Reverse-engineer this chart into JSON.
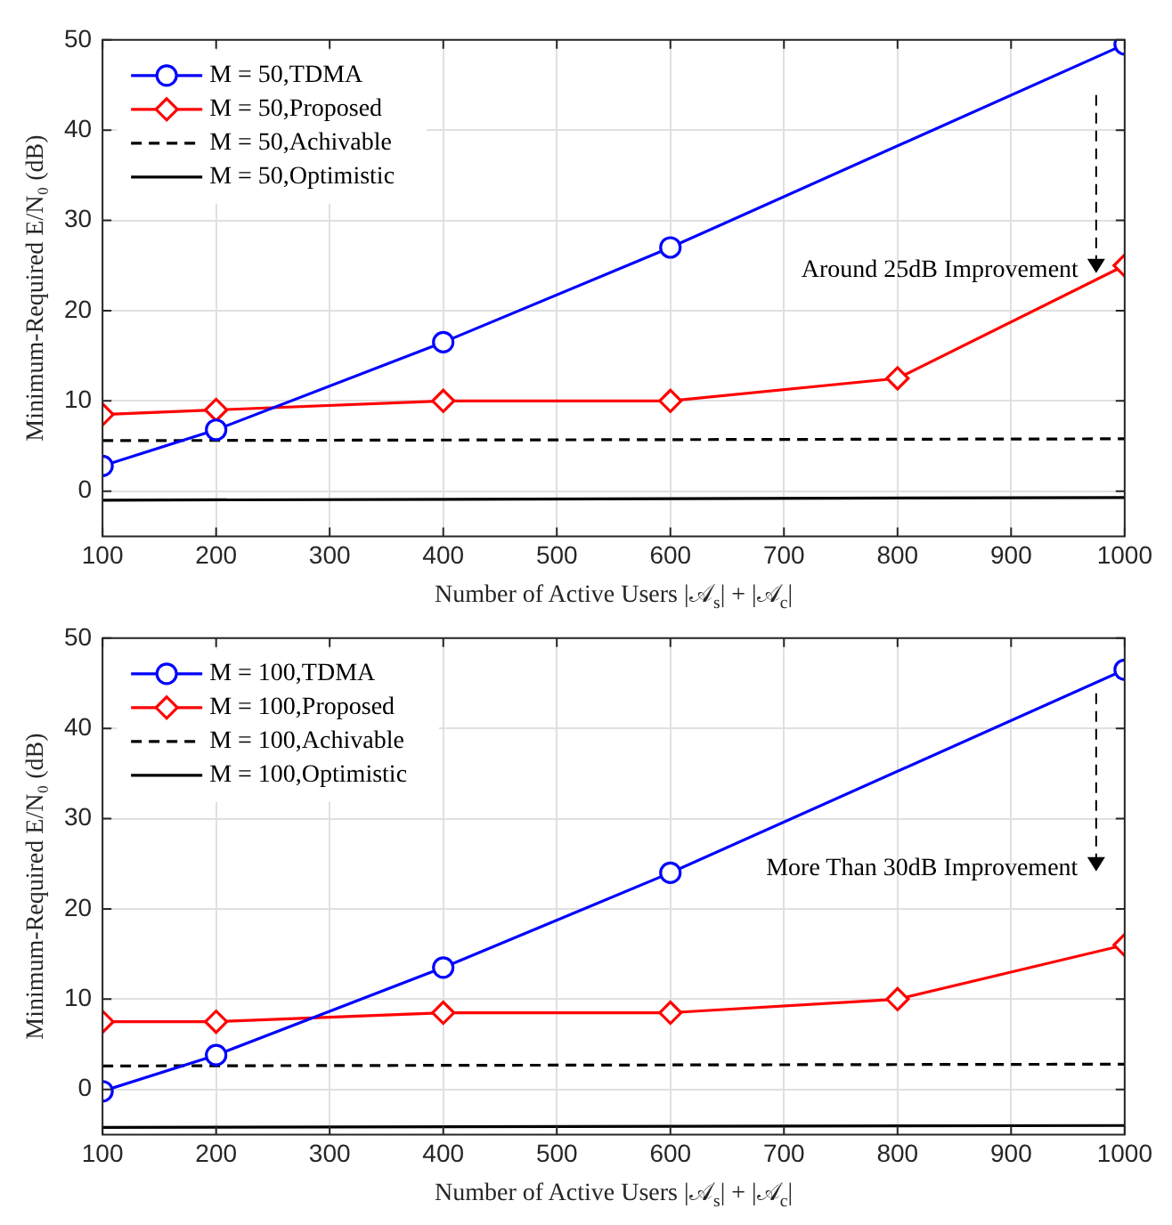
{
  "chart_data": [
    {
      "type": "line",
      "xlabel": "Number of Active Users |𝒜$_{s}$| + |𝒜$_{c}$|",
      "ylabel": "Minimum-Required E/N₀ (dB)",
      "xlim": [
        100,
        1000
      ],
      "xticks": [
        100,
        200,
        300,
        400,
        500,
        600,
        700,
        800,
        900,
        1000
      ],
      "ylim": [
        -5,
        50
      ],
      "yticks": [
        0,
        10,
        20,
        30,
        40,
        50
      ],
      "grid": true,
      "legend": "top left",
      "annotations": [
        "Around 25dB Improvement"
      ],
      "series": [
        {
          "name": "M = 50,TDMA",
          "color": "#0000ff",
          "marker": "circle",
          "line_style": "solid",
          "x": [
            100,
            200,
            400,
            600,
            1000
          ],
          "values": [
            2.8,
            6.8,
            16.5,
            27,
            49.5
          ]
        },
        {
          "name": "M = 50,Proposed",
          "color": "#ff0000",
          "marker": "diamond",
          "line_style": "solid",
          "x": [
            100,
            200,
            400,
            600,
            800,
            1000
          ],
          "values": [
            8.5,
            9,
            10,
            10,
            12.5,
            25
          ]
        },
        {
          "name": "M = 50,Achivable",
          "color": "#000000",
          "marker": "none",
          "line_style": "dashed",
          "x": [
            100,
            1000
          ],
          "values": [
            5.6,
            5.8
          ]
        },
        {
          "name": "M = 50,Optimistic",
          "color": "#000000",
          "marker": "none",
          "line_style": "solid",
          "x": [
            100,
            1000
          ],
          "values": [
            -1,
            -0.7
          ]
        }
      ]
    },
    {
      "type": "line",
      "xlabel": "Number of Active Users |𝒜$_{s}$| + |𝒜$_{c}$|",
      "ylabel": "Minimum-Required E/N₀ (dB)",
      "xlim": [
        100,
        1000
      ],
      "xticks": [
        100,
        200,
        300,
        400,
        500,
        600,
        700,
        800,
        900,
        1000
      ],
      "ylim": [
        -5,
        50
      ],
      "yticks": [
        0,
        10,
        20,
        30,
        40,
        50
      ],
      "grid": true,
      "legend": "top left",
      "annotations": [
        "More Than 30dB Improvement"
      ],
      "series": [
        {
          "name": "M = 100,TDMA",
          "color": "#0000ff",
          "marker": "circle",
          "line_style": "solid",
          "x": [
            100,
            200,
            400,
            600,
            1000
          ],
          "values": [
            -0.2,
            3.8,
            13.5,
            24,
            46.5
          ]
        },
        {
          "name": "M = 100,Proposed",
          "color": "#ff0000",
          "marker": "diamond",
          "line_style": "solid",
          "x": [
            100,
            200,
            400,
            600,
            800,
            1000
          ],
          "values": [
            7.5,
            7.5,
            8.5,
            8.5,
            10,
            16
          ]
        },
        {
          "name": "M = 100,Achivable",
          "color": "#000000",
          "marker": "none",
          "line_style": "dashed",
          "x": [
            100,
            1000
          ],
          "values": [
            2.6,
            2.8
          ]
        },
        {
          "name": "M = 100,Optimistic",
          "color": "#000000",
          "marker": "none",
          "line_style": "solid",
          "x": [
            100,
            1000
          ],
          "values": [
            -4.2,
            -4
          ]
        }
      ]
    }
  ]
}
